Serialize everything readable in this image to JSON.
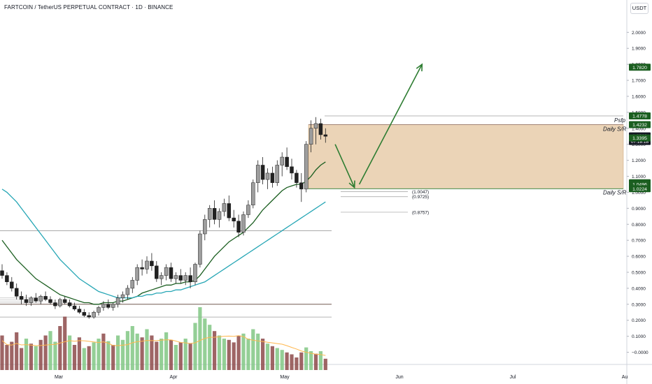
{
  "header": {
    "title": "FARTCOIN / TetherUS PERPETUAL CONTRACT · 1D · BINANCE",
    "currency": "USDT"
  },
  "colors": {
    "up": "#9e9e9e",
    "down": "#212121",
    "ma_short": "#1b5e20",
    "ma_long": "#26a6b5",
    "vol_up": "#81c784",
    "vol_down": "#8d4a4a",
    "zone": "#deb887",
    "label_green": "#1b5e20",
    "arrow": "#2e7d32"
  },
  "chart_data": {
    "type": "candlestick",
    "ylim": [
      -0.05,
      2.08
    ],
    "y_ticks": [
      "2.0000",
      "1.9000",
      "1.8000",
      "1.7000",
      "1.6000",
      "1.5000",
      "1.4000",
      "1.3000",
      "1.2000",
      "1.1000",
      "1.0000",
      "0.9000",
      "0.8000",
      "0.7000",
      "0.6000",
      "0.5000",
      "0.4000",
      "0.3000",
      "0.2000",
      "0.1000",
      "−0.0000"
    ],
    "x_ticks": [
      "Mar",
      "Apr",
      "May",
      "Jun",
      "Jul",
      "Au"
    ],
    "candles": [
      [
        0.51,
        0.55,
        0.46,
        0.48
      ],
      [
        0.48,
        0.5,
        0.42,
        0.44
      ],
      [
        0.44,
        0.47,
        0.38,
        0.4
      ],
      [
        0.4,
        0.43,
        0.33,
        0.35
      ],
      [
        0.35,
        0.38,
        0.3,
        0.33
      ],
      [
        0.33,
        0.36,
        0.29,
        0.31
      ],
      [
        0.31,
        0.35,
        0.29,
        0.34
      ],
      [
        0.34,
        0.37,
        0.31,
        0.32
      ],
      [
        0.32,
        0.36,
        0.3,
        0.35
      ],
      [
        0.35,
        0.38,
        0.32,
        0.33
      ],
      [
        0.33,
        0.35,
        0.3,
        0.31
      ],
      [
        0.31,
        0.33,
        0.27,
        0.29
      ],
      [
        0.29,
        0.34,
        0.28,
        0.33
      ],
      [
        0.33,
        0.35,
        0.3,
        0.31
      ],
      [
        0.31,
        0.33,
        0.28,
        0.29
      ],
      [
        0.29,
        0.31,
        0.26,
        0.27
      ],
      [
        0.27,
        0.29,
        0.24,
        0.25
      ],
      [
        0.25,
        0.27,
        0.22,
        0.23
      ],
      [
        0.23,
        0.25,
        0.21,
        0.22
      ],
      [
        0.22,
        0.26,
        0.21,
        0.25
      ],
      [
        0.25,
        0.29,
        0.23,
        0.28
      ],
      [
        0.28,
        0.32,
        0.26,
        0.3
      ],
      [
        0.3,
        0.33,
        0.27,
        0.28
      ],
      [
        0.28,
        0.31,
        0.26,
        0.3
      ],
      [
        0.3,
        0.36,
        0.28,
        0.34
      ],
      [
        0.34,
        0.38,
        0.31,
        0.36
      ],
      [
        0.36,
        0.42,
        0.33,
        0.4
      ],
      [
        0.4,
        0.47,
        0.37,
        0.45
      ],
      [
        0.45,
        0.55,
        0.42,
        0.53
      ],
      [
        0.53,
        0.58,
        0.48,
        0.52
      ],
      [
        0.52,
        0.6,
        0.49,
        0.57
      ],
      [
        0.57,
        0.62,
        0.51,
        0.54
      ],
      [
        0.54,
        0.57,
        0.44,
        0.46
      ],
      [
        0.46,
        0.5,
        0.42,
        0.48
      ],
      [
        0.48,
        0.55,
        0.45,
        0.53
      ],
      [
        0.53,
        0.56,
        0.44,
        0.46
      ],
      [
        0.46,
        0.5,
        0.43,
        0.48
      ],
      [
        0.48,
        0.52,
        0.43,
        0.45
      ],
      [
        0.45,
        0.5,
        0.42,
        0.48
      ],
      [
        0.48,
        0.53,
        0.4,
        0.44
      ],
      [
        0.44,
        0.56,
        0.42,
        0.55
      ],
      [
        0.55,
        0.76,
        0.53,
        0.74
      ],
      [
        0.74,
        0.86,
        0.7,
        0.83
      ],
      [
        0.83,
        0.92,
        0.78,
        0.9
      ],
      [
        0.9,
        0.95,
        0.8,
        0.83
      ],
      [
        0.83,
        0.9,
        0.78,
        0.88
      ],
      [
        0.88,
        0.96,
        0.85,
        0.93
      ],
      [
        0.93,
        0.98,
        0.82,
        0.84
      ],
      [
        0.84,
        0.89,
        0.78,
        0.82
      ],
      [
        0.82,
        0.86,
        0.72,
        0.75
      ],
      [
        0.75,
        0.88,
        0.73,
        0.86
      ],
      [
        0.86,
        0.95,
        0.84,
        0.92
      ],
      [
        0.92,
        1.08,
        0.9,
        1.06
      ],
      [
        1.06,
        1.2,
        1.0,
        1.17
      ],
      [
        1.17,
        1.22,
        1.05,
        1.08
      ],
      [
        1.08,
        1.15,
        1.02,
        1.12
      ],
      [
        1.12,
        1.16,
        1.03,
        1.06
      ],
      [
        1.06,
        1.2,
        1.04,
        1.17
      ],
      [
        1.17,
        1.25,
        1.1,
        1.22
      ],
      [
        1.22,
        1.28,
        1.14,
        1.16
      ],
      [
        1.16,
        1.21,
        1.08,
        1.12
      ],
      [
        1.12,
        1.14,
        1.03,
        1.06
      ],
      [
        1.06,
        1.12,
        0.94,
        1.02
      ],
      [
        1.02,
        1.32,
        1.0,
        1.3
      ],
      [
        1.3,
        1.45,
        1.25,
        1.4
      ],
      [
        1.4,
        1.47,
        1.3,
        1.43
      ],
      [
        1.43,
        1.46,
        1.33,
        1.36
      ],
      [
        1.36,
        1.4,
        1.31,
        1.35
      ]
    ],
    "moving_averages": [
      {
        "values": [
          0.7,
          0.66,
          0.62,
          0.58,
          0.55,
          0.52,
          0.49,
          0.46,
          0.44,
          0.42,
          0.4,
          0.38,
          0.36,
          0.35,
          0.34,
          0.33,
          0.32,
          0.31,
          0.31,
          0.3,
          0.3,
          0.31,
          0.31,
          0.31,
          0.32,
          0.32,
          0.33,
          0.34,
          0.35,
          0.37,
          0.38,
          0.39,
          0.4,
          0.41,
          0.42,
          0.42,
          0.43,
          0.43,
          0.44,
          0.44,
          0.45,
          0.48,
          0.52,
          0.56,
          0.6,
          0.63,
          0.66,
          0.69,
          0.71,
          0.73,
          0.75,
          0.78,
          0.81,
          0.85,
          0.89,
          0.92,
          0.95,
          0.98,
          1.01,
          1.03,
          1.04,
          1.05,
          1.05,
          1.07,
          1.1,
          1.14,
          1.17,
          1.19
        ]
      },
      {
        "values": [
          1.02,
          1.0,
          0.97,
          0.94,
          0.9,
          0.86,
          0.82,
          0.78,
          0.74,
          0.7,
          0.66,
          0.62,
          0.58,
          0.55,
          0.52,
          0.49,
          0.46,
          0.44,
          0.42,
          0.4,
          0.38,
          0.37,
          0.36,
          0.35,
          0.34,
          0.34,
          0.34,
          0.34,
          0.35,
          0.35,
          0.36,
          0.36,
          0.37,
          0.37,
          0.38,
          0.38,
          0.39,
          0.39,
          0.4,
          0.41,
          0.42,
          0.43,
          0.44,
          0.46,
          0.48,
          0.5,
          0.52,
          0.54,
          0.56,
          0.58,
          0.6,
          0.62,
          0.64,
          0.66,
          0.68,
          0.7,
          0.72,
          0.74,
          0.76,
          0.78,
          0.8,
          0.82,
          0.84,
          0.86,
          0.88,
          0.9,
          0.92,
          0.94
        ]
      }
    ],
    "volume": [
      {
        "v": 0.55,
        "up": false
      },
      {
        "v": 0.4,
        "up": false
      },
      {
        "v": 0.45,
        "up": false
      },
      {
        "v": 0.6,
        "up": false
      },
      {
        "v": 0.35,
        "up": false
      },
      {
        "v": 0.5,
        "up": true
      },
      {
        "v": 0.42,
        "up": false
      },
      {
        "v": 0.38,
        "up": true
      },
      {
        "v": 0.48,
        "up": false
      },
      {
        "v": 0.55,
        "up": false
      },
      {
        "v": 0.62,
        "up": true
      },
      {
        "v": 0.45,
        "up": true
      },
      {
        "v": 0.7,
        "up": false
      },
      {
        "v": 0.85,
        "up": false
      },
      {
        "v": 0.55,
        "up": true
      },
      {
        "v": 0.4,
        "up": false
      },
      {
        "v": 0.52,
        "up": false
      },
      {
        "v": 0.35,
        "up": true
      },
      {
        "v": 0.38,
        "up": false
      },
      {
        "v": 0.44,
        "up": true
      },
      {
        "v": 0.5,
        "up": true
      },
      {
        "v": 0.58,
        "up": false
      },
      {
        "v": 0.46,
        "up": true
      },
      {
        "v": 0.4,
        "up": false
      },
      {
        "v": 0.55,
        "up": true
      },
      {
        "v": 0.48,
        "up": true
      },
      {
        "v": 0.62,
        "up": true
      },
      {
        "v": 0.7,
        "up": true
      },
      {
        "v": 0.58,
        "up": true
      },
      {
        "v": 0.52,
        "up": false
      },
      {
        "v": 0.65,
        "up": true
      },
      {
        "v": 0.55,
        "up": false
      },
      {
        "v": 0.45,
        "up": false
      },
      {
        "v": 0.5,
        "up": true
      },
      {
        "v": 0.6,
        "up": true
      },
      {
        "v": 0.48,
        "up": false
      },
      {
        "v": 0.4,
        "up": true
      },
      {
        "v": 0.44,
        "up": false
      },
      {
        "v": 0.5,
        "up": true
      },
      {
        "v": 0.42,
        "up": false
      },
      {
        "v": 0.75,
        "up": true
      },
      {
        "v": 1.0,
        "up": true
      },
      {
        "v": 0.82,
        "up": true
      },
      {
        "v": 0.72,
        "up": true
      },
      {
        "v": 0.62,
        "up": false
      },
      {
        "v": 0.55,
        "up": true
      },
      {
        "v": 0.5,
        "up": true
      },
      {
        "v": 0.48,
        "up": false
      },
      {
        "v": 0.44,
        "up": false
      },
      {
        "v": 0.55,
        "up": false
      },
      {
        "v": 0.58,
        "up": true
      },
      {
        "v": 0.5,
        "up": true
      },
      {
        "v": 0.65,
        "up": true
      },
      {
        "v": 0.58,
        "up": true
      },
      {
        "v": 0.5,
        "up": false
      },
      {
        "v": 0.42,
        "up": true
      },
      {
        "v": 0.38,
        "up": false
      },
      {
        "v": 0.35,
        "up": true
      },
      {
        "v": 0.32,
        "up": true
      },
      {
        "v": 0.28,
        "up": false
      },
      {
        "v": 0.25,
        "up": false
      },
      {
        "v": 0.2,
        "up": false
      },
      {
        "v": 0.28,
        "up": false
      },
      {
        "v": 0.36,
        "up": true
      },
      {
        "v": 0.3,
        "up": true
      },
      {
        "v": 0.26,
        "up": false
      },
      {
        "v": 0.3,
        "up": true
      },
      {
        "v": 0.18,
        "up": false
      }
    ],
    "levels": {
      "psfp": {
        "value": 1.4778,
        "label": "Psfp"
      },
      "daily_sr_top": {
        "value": 1.4232,
        "label": "Daily S/R"
      },
      "daily_sr_bottom": {
        "value": 1.0224,
        "label": "Daily S/R"
      },
      "fibs": [
        {
          "value": 1.0047,
          "label": "(1.0047)"
        },
        {
          "value": 0.9725,
          "label": "(0.9725)"
        },
        {
          "value": 0.8757,
          "label": "(0.8757)"
        }
      ],
      "horizontals": [
        0.76,
        0.3,
        0.22
      ]
    },
    "price_labels": [
      {
        "value": 1.782,
        "text": "1.7820",
        "style": "green"
      },
      {
        "value": 1.4778,
        "text": "1.4778",
        "style": "green"
      },
      {
        "value": 1.4232,
        "text": "1.4232",
        "style": "green"
      },
      {
        "value": 1.3529,
        "text": "1.3529",
        "sub": "07:18:18",
        "style": "dark"
      },
      {
        "value": 1.3395,
        "text": "1.3395",
        "style": "green"
      },
      {
        "value": 1.0597,
        "text": "1.0597",
        "style": "green"
      },
      {
        "value": 1.0496,
        "text": "1.0496",
        "style": "green"
      },
      {
        "value": 1.0224,
        "text": "1.0224",
        "style": "green"
      }
    ],
    "arrows": [
      {
        "from": [
          69,
          1.3
        ],
        "to": [
          73,
          1.03
        ]
      },
      {
        "from": [
          74,
          1.05
        ],
        "to": [
          87,
          1.8
        ]
      }
    ]
  }
}
